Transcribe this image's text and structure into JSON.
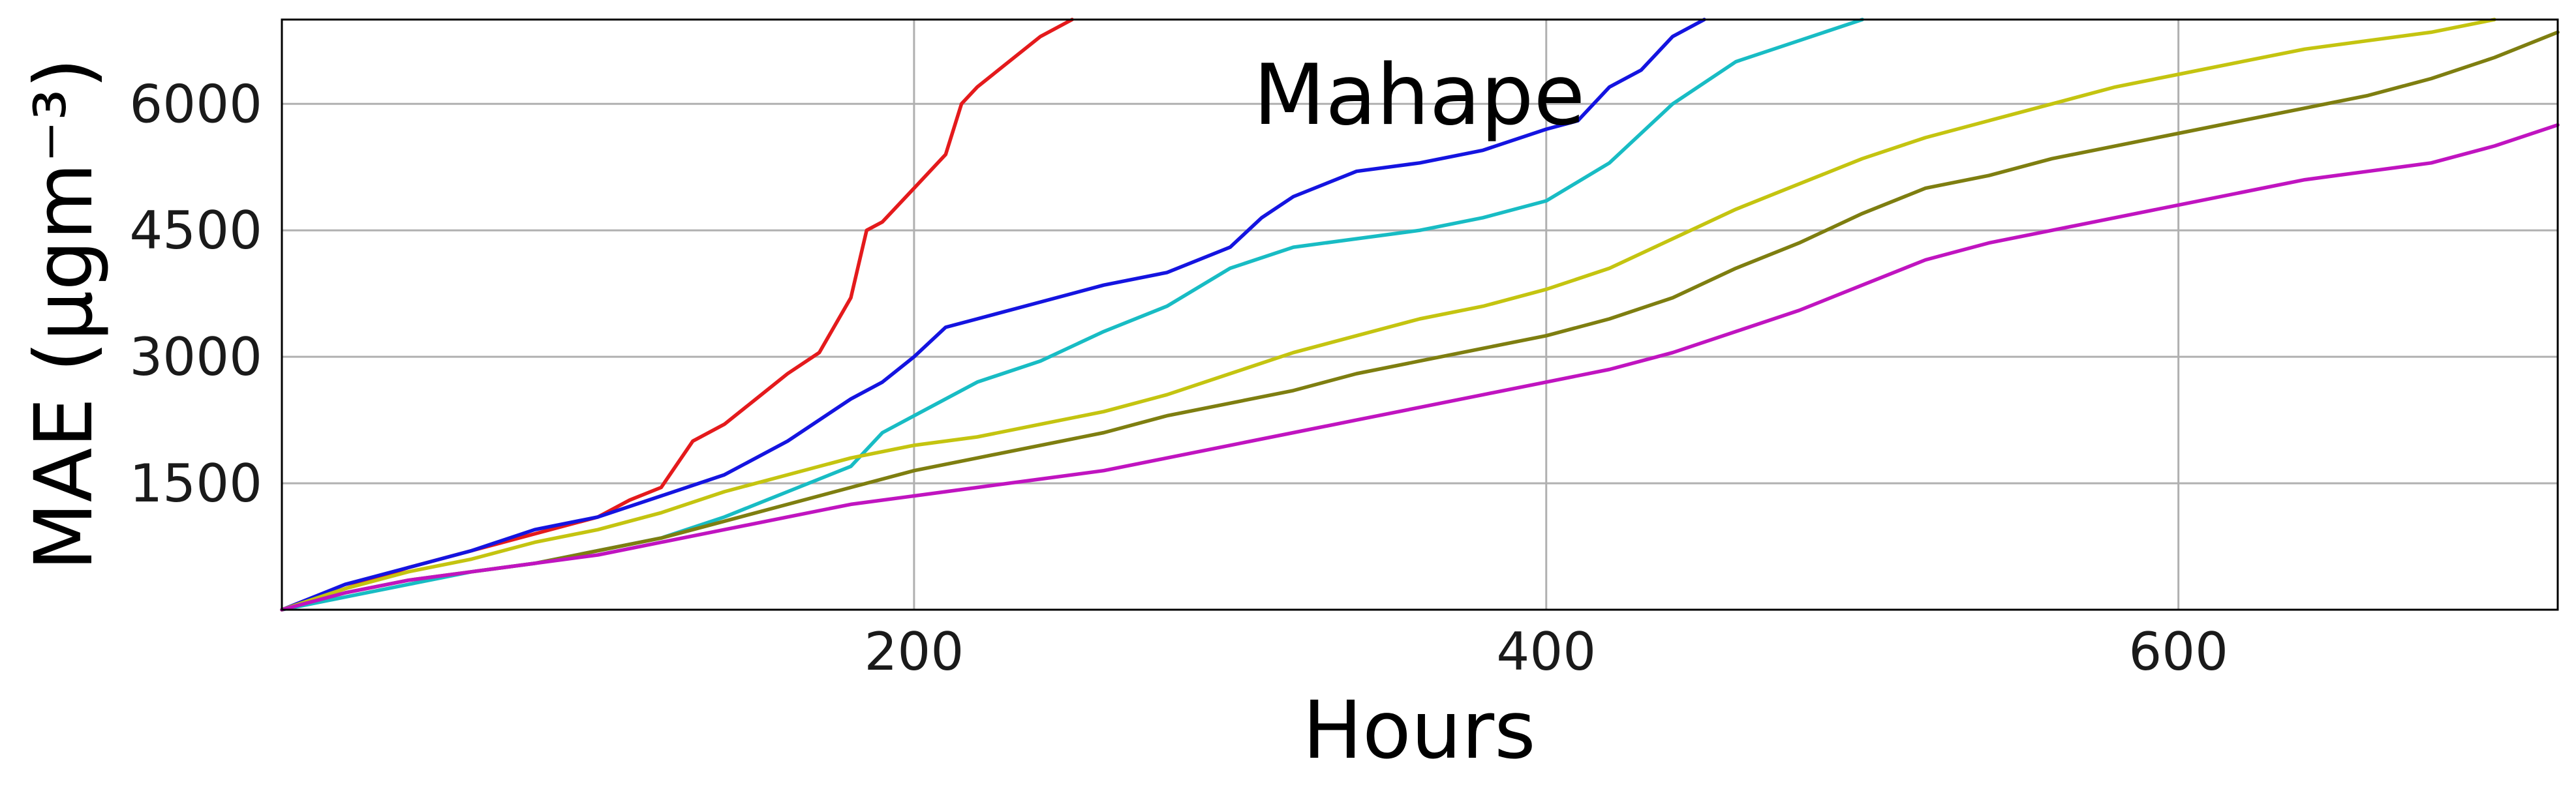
{
  "chart_data": {
    "type": "line",
    "title": "Mahape",
    "xlabel": "Hours",
    "ylabel": "MAE (μgm⁻³)",
    "xlim": [
      0,
      720
    ],
    "ylim": [
      0,
      7000
    ],
    "xticks": [
      200,
      400,
      600
    ],
    "yticks": [
      1500,
      3000,
      4500,
      6000
    ],
    "grid": true,
    "series": [
      {
        "color": "#e41a1c",
        "x": [
          0,
          20,
          40,
          60,
          80,
          100,
          110,
          120,
          130,
          140,
          150,
          160,
          170,
          180,
          185,
          190,
          200,
          210,
          215,
          220,
          230,
          240,
          250
        ],
        "y": [
          0,
          250,
          500,
          700,
          900,
          1100,
          1300,
          1450,
          2000,
          2200,
          2500,
          2800,
          3050,
          3700,
          4500,
          4600,
          5000,
          5400,
          6000,
          6200,
          6500,
          6800,
          7000
        ]
      },
      {
        "color": "#1414e0",
        "x": [
          0,
          20,
          40,
          60,
          80,
          100,
          120,
          140,
          160,
          180,
          190,
          200,
          210,
          220,
          240,
          260,
          280,
          300,
          310,
          320,
          340,
          360,
          380,
          400,
          410,
          420,
          430,
          440,
          450
        ],
        "y": [
          0,
          300,
          500,
          700,
          950,
          1100,
          1350,
          1600,
          2000,
          2500,
          2700,
          3000,
          3350,
          3450,
          3650,
          3850,
          4000,
          4300,
          4650,
          4900,
          5200,
          5300,
          5450,
          5700,
          5800,
          6200,
          6400,
          6800,
          7000
        ]
      },
      {
        "color": "#18bcc4",
        "x": [
          0,
          20,
          40,
          60,
          80,
          100,
          120,
          140,
          160,
          180,
          190,
          200,
          220,
          240,
          260,
          280,
          300,
          320,
          340,
          360,
          380,
          400,
          420,
          440,
          460,
          480,
          500
        ],
        "y": [
          0,
          150,
          300,
          450,
          550,
          700,
          850,
          1100,
          1400,
          1700,
          2100,
          2300,
          2700,
          2950,
          3300,
          3600,
          4050,
          4300,
          4400,
          4500,
          4650,
          4850,
          5300,
          6000,
          6500,
          6750,
          7000
        ]
      },
      {
        "color": "#c4c410",
        "x": [
          0,
          20,
          40,
          60,
          80,
          100,
          120,
          140,
          160,
          180,
          200,
          220,
          240,
          260,
          280,
          300,
          320,
          340,
          360,
          380,
          400,
          420,
          440,
          460,
          480,
          500,
          520,
          540,
          560,
          580,
          600,
          620,
          640,
          660,
          680,
          700
        ],
        "y": [
          0,
          250,
          450,
          600,
          800,
          950,
          1150,
          1400,
          1600,
          1800,
          1950,
          2050,
          2200,
          2350,
          2550,
          2800,
          3050,
          3250,
          3450,
          3600,
          3800,
          4050,
          4400,
          4750,
          5050,
          5350,
          5600,
          5800,
          6000,
          6200,
          6350,
          6500,
          6650,
          6750,
          6850,
          7000
        ]
      },
      {
        "color": "#7e7e10",
        "x": [
          0,
          20,
          40,
          60,
          80,
          100,
          120,
          140,
          160,
          180,
          200,
          220,
          240,
          260,
          280,
          300,
          320,
          340,
          360,
          380,
          400,
          420,
          440,
          460,
          480,
          500,
          520,
          540,
          560,
          580,
          600,
          620,
          640,
          660,
          680,
          700,
          720
        ],
        "y": [
          0,
          200,
          350,
          450,
          550,
          700,
          850,
          1050,
          1250,
          1450,
          1650,
          1800,
          1950,
          2100,
          2300,
          2450,
          2600,
          2800,
          2950,
          3100,
          3250,
          3450,
          3700,
          4050,
          4350,
          4700,
          5000,
          5150,
          5350,
          5500,
          5650,
          5800,
          5950,
          6100,
          6300,
          6550,
          6850
        ]
      },
      {
        "color": "#c014c0",
        "x": [
          0,
          20,
          40,
          60,
          80,
          100,
          120,
          140,
          160,
          180,
          200,
          220,
          240,
          260,
          280,
          300,
          320,
          340,
          360,
          380,
          400,
          420,
          440,
          460,
          480,
          500,
          520,
          540,
          560,
          580,
          600,
          620,
          640,
          660,
          680,
          700,
          720
        ],
        "y": [
          0,
          200,
          350,
          450,
          550,
          650,
          800,
          950,
          1100,
          1250,
          1350,
          1450,
          1550,
          1650,
          1800,
          1950,
          2100,
          2250,
          2400,
          2550,
          2700,
          2850,
          3050,
          3300,
          3550,
          3850,
          4150,
          4350,
          4500,
          4650,
          4800,
          4950,
          5100,
          5200,
          5300,
          5500,
          5750
        ]
      }
    ]
  }
}
